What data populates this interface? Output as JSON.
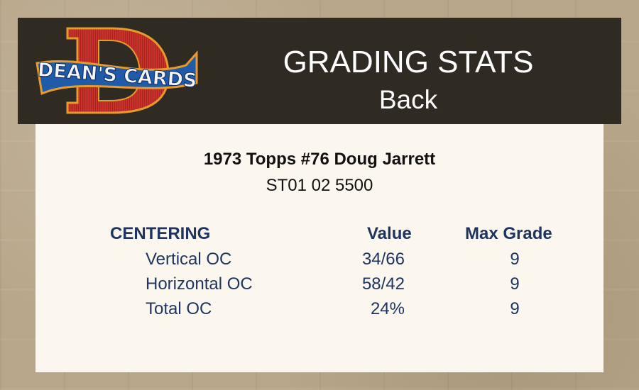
{
  "header": {
    "logo_text": "DEAN'S CARDS",
    "title": "GRADING STATS",
    "subtitle": "Back"
  },
  "card": {
    "title": "1973 Topps #76 Doug Jarrett",
    "cert": "ST01 02 5500"
  },
  "table": {
    "section": "CENTERING",
    "col_value": "Value",
    "col_max": "Max Grade",
    "rows": [
      {
        "label": "Vertical OC",
        "value": "34/66",
        "max": "9"
      },
      {
        "label": "Horizontal OC",
        "value": "58/42",
        "max": "9"
      },
      {
        "label": "Total OC",
        "value": "24%",
        "max": "9"
      }
    ]
  },
  "colors": {
    "header_bg": "#2f2a22",
    "card_bg": "#fcf7ee",
    "text_blue": "#1f3560"
  }
}
